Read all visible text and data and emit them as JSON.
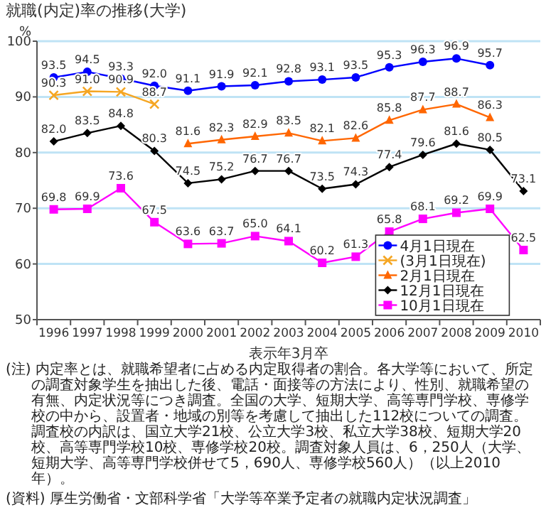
{
  "chart_data": {
    "type": "line",
    "title": "就職(内定)率の推移(大学)",
    "xlabel": "表示年3月卒",
    "ylabel": "%",
    "categories": [
      "1996",
      "1997",
      "1998",
      "1999",
      "2000",
      "2001",
      "2002",
      "2003",
      "2004",
      "2005",
      "2006",
      "2007",
      "2008",
      "2009",
      "2010"
    ],
    "series": [
      {
        "name": "4月1日現在",
        "color": "#0000ff",
        "marker": "circle",
        "values": [
          93.5,
          94.5,
          93.3,
          92.0,
          91.1,
          91.9,
          92.1,
          92.8,
          93.1,
          93.5,
          95.3,
          96.3,
          96.9,
          95.7,
          null
        ],
        "value_labels": [
          "93.5",
          "94.5",
          "93.3",
          "92.0",
          "91.1",
          "91.9",
          "92.1",
          "92.8",
          "93.1",
          "93.5",
          "95.3",
          "96.3",
          "96.9",
          "95.7",
          null
        ]
      },
      {
        "name": "(3月1日現在)",
        "color": "#f5a623",
        "marker": "cross",
        "values": [
          90.3,
          91.0,
          90.9,
          88.7,
          null,
          null,
          null,
          null,
          null,
          null,
          null,
          null,
          null,
          null,
          null
        ],
        "value_labels": [
          "90.3",
          "91.0",
          "90.9",
          "88.7",
          null,
          null,
          null,
          null,
          null,
          null,
          null,
          null,
          null,
          null,
          null
        ]
      },
      {
        "name": "2月1日現在",
        "color": "#ff6600",
        "marker": "triangle",
        "values": [
          null,
          null,
          null,
          null,
          81.6,
          82.3,
          82.9,
          83.5,
          82.1,
          82.6,
          85.8,
          87.7,
          88.7,
          86.3,
          null
        ],
        "value_labels": [
          null,
          null,
          null,
          null,
          "81.6",
          "82.3",
          "82.9",
          "83.5",
          "82.1",
          "82.6",
          "85.8",
          "87.7",
          "88.7",
          "86.3",
          null
        ]
      },
      {
        "name": "12月1日現在",
        "color": "#000000",
        "marker": "diamond",
        "values": [
          82.0,
          83.5,
          84.8,
          80.3,
          74.5,
          75.2,
          76.7,
          76.7,
          73.5,
          74.3,
          77.4,
          79.6,
          81.6,
          80.5,
          73.1
        ],
        "value_labels": [
          "82.0",
          "83.5",
          "84.8",
          "80.3",
          "74.5",
          "75.2",
          "76.7",
          "76.7",
          "73.5",
          "74.3",
          "77.4",
          "79.6",
          "81.6",
          "80.5",
          "73.1"
        ]
      },
      {
        "name": "10月1日現在",
        "color": "#ff00ff",
        "marker": "square",
        "values": [
          69.8,
          69.9,
          73.6,
          67.5,
          63.6,
          63.7,
          65.0,
          64.1,
          60.2,
          61.3,
          65.8,
          68.1,
          69.2,
          69.9,
          62.5
        ],
        "value_labels": [
          "69.8",
          "69.9",
          "73.6",
          "67.5",
          "63.6",
          "63.7",
          "65.0",
          "64.1",
          "60.2",
          "61.3",
          "65.8",
          "68.1",
          "69.2",
          "69.9",
          "62.5"
        ]
      }
    ],
    "ylim": [
      50,
      100
    ],
    "yticks": [
      50,
      60,
      70,
      80,
      90,
      100
    ],
    "grid": "y",
    "legend": "bottom right",
    "annotations": [
      "(注) 内定率とは、就職希望者に占める内定取得者の割合。各大学等において、所定の調査対象学生を抽出した後、電話・面接等の方法により、性別、就職希望の有無、内定状況等につき調査。全国の大学、短期大学、高等専門学校、専修学校の中から、設置者・地域の別等を考慮して抽出した112校についての調査。調査校の内訳は、国立大学21校、公立大学3校、私立大学38校、短期大学20校、高等専門学校10校、専修学校20校。調査対象人員は、6，250人（大学、短期大学、高等専門学校併せて5，690人、専修学校560人）（以上2010年）。",
      "(資料) 厚生労働省・文部科学省「大学等卒業予定者の就職内定状況調査」"
    ]
  }
}
